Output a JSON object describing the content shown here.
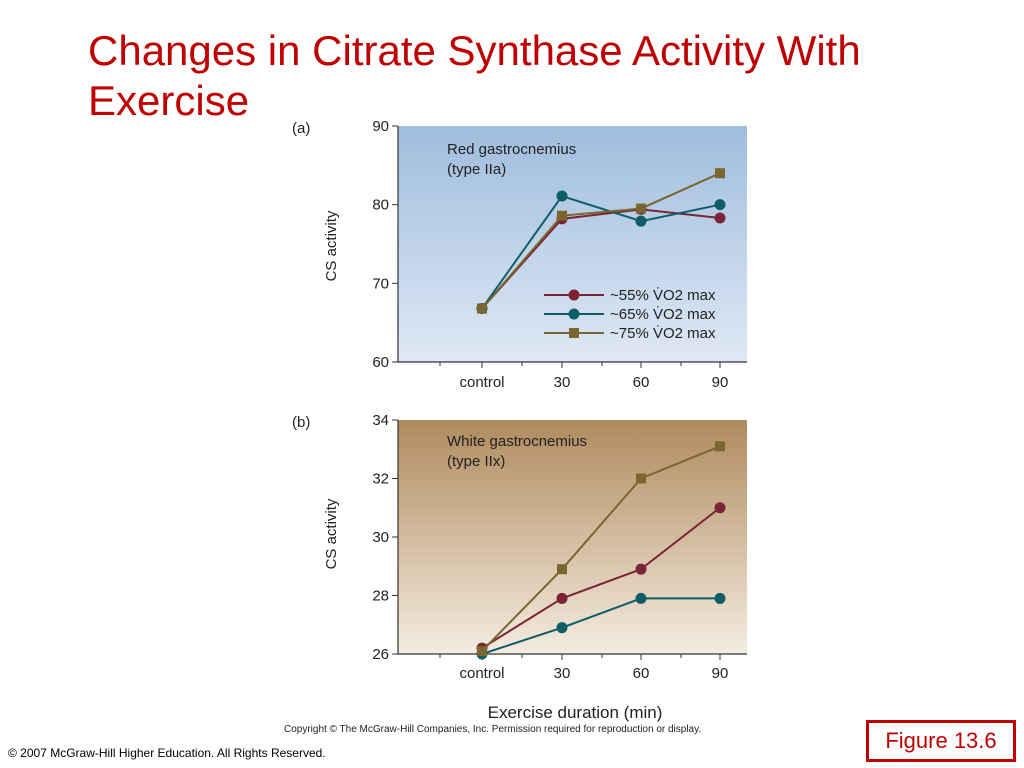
{
  "slide": {
    "title": "Changes in Citrate Synthase Activity With Exercise",
    "figure_copyright": "Copyright © The McGraw-Hill Companies, Inc. Permission required for reproduction or display.",
    "footer": "© 2007 McGraw-Hill Higher Education. All Rights Reserved.",
    "figure_label": "Figure 13.6"
  },
  "chart_data": [
    {
      "type": "line",
      "panel_label": "(a)",
      "annotation": [
        "Red gastrocnemius",
        "(type IIa)"
      ],
      "ylabel": "CS activity",
      "xlabel": "",
      "categories": [
        "control",
        "30",
        "60",
        "90"
      ],
      "ylim": [
        60,
        90
      ],
      "yticks": [
        60,
        70,
        80,
        90
      ],
      "background": [
        "#9fbddd",
        "#dfe8f4"
      ],
      "legend_position": "bottom-right",
      "series": [
        {
          "name": "~55% V̇O2 max",
          "color": "#7a2435",
          "marker": "circle",
          "values": [
            66.8,
            78.2,
            79.4,
            78.3
          ]
        },
        {
          "name": "~65% V̇O2 max",
          "color": "#0e5e6a",
          "marker": "circle",
          "values": [
            66.8,
            81.1,
            77.9,
            80.0
          ]
        },
        {
          "name": "~75% V̇O2 max",
          "color": "#7b6530",
          "marker": "square",
          "values": [
            66.8,
            78.6,
            79.5,
            84.0
          ]
        }
      ]
    },
    {
      "type": "line",
      "panel_label": "(b)",
      "annotation": [
        "White gastrocnemius",
        "(type IIx)"
      ],
      "ylabel": "CS activity",
      "xlabel": "Exercise duration (min)",
      "categories": [
        "control",
        "30",
        "60",
        "90"
      ],
      "ylim": [
        26,
        34
      ],
      "yticks": [
        26,
        28,
        30,
        32,
        34
      ],
      "background": [
        "#b08a5e",
        "#f4ece0"
      ],
      "series": [
        {
          "name": "~55% V̇O2 max",
          "color": "#7a2435",
          "marker": "circle",
          "values": [
            26.2,
            27.9,
            28.9,
            31.0
          ]
        },
        {
          "name": "~65% V̇O2 max",
          "color": "#0e5e6a",
          "marker": "circle",
          "values": [
            26.0,
            26.9,
            27.9,
            27.9
          ]
        },
        {
          "name": "~75% V̇O2 max",
          "color": "#7b6530",
          "marker": "square",
          "values": [
            26.1,
            28.9,
            32.0,
            33.1
          ]
        }
      ]
    }
  ]
}
